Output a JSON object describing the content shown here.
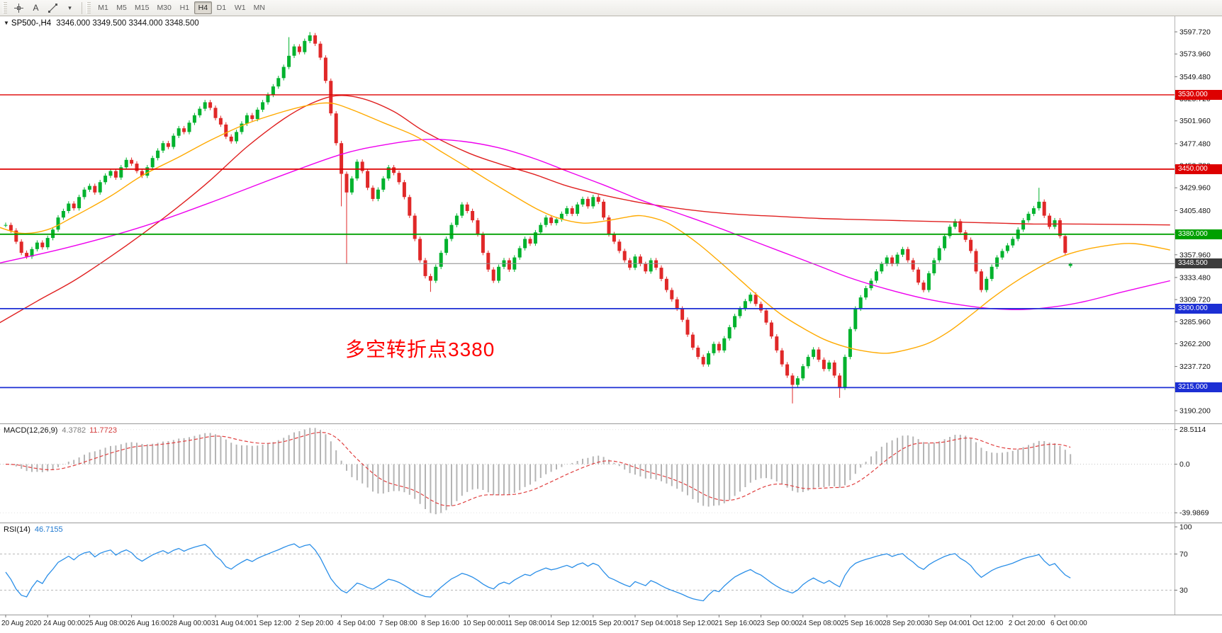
{
  "toolbar": {
    "text_tool_label": "A",
    "dropdown_caret": "▾",
    "timeframes": [
      "M1",
      "M5",
      "M15",
      "M30",
      "H1",
      "H4",
      "D1",
      "W1",
      "MN"
    ],
    "active_timeframe": "H4"
  },
  "header": {
    "collapse_icon": "▼",
    "chart_title": "SP500-,H4",
    "ohlc_text": "3346.000 3349.500 3344.000 3348.500"
  },
  "chart_data": {
    "type": "candlestick",
    "symbol": "SP500-",
    "timeframe": "H4",
    "ohlc_display": {
      "open": "3346.000",
      "high": "3349.500",
      "low": "3344.000",
      "close": "3348.500"
    },
    "ylim": [
      3190.2,
      3597.72
    ],
    "price_axis_labels": [
      "3597.720",
      "3573.960",
      "3549.480",
      "3525.720",
      "3501.960",
      "3477.480",
      "3453.720",
      "3429.960",
      "3405.480",
      "3381.720",
      "3357.960",
      "3333.480",
      "3309.720",
      "3285.960",
      "3262.200",
      "3237.720",
      "3213.960",
      "3190.200"
    ],
    "time_labels": [
      "20 Aug 2020",
      "24 Aug 00:00",
      "25 Aug 08:00",
      "26 Aug 16:00",
      "28 Aug 00:00",
      "31 Aug 04:00",
      "1 Sep 12:00",
      "2 Sep 20:00",
      "4 Sep 04:00",
      "7 Sep 08:00",
      "8 Sep 16:00",
      "10 Sep 00:00",
      "11 Sep 08:00",
      "14 Sep 12:00",
      "15 Sep 20:00",
      "17 Sep 04:00",
      "18 Sep 12:00",
      "21 Sep 16:00",
      "23 Sep 00:00",
      "24 Sep 08:00",
      "25 Sep 16:00",
      "28 Sep 20:00",
      "30 Sep 04:00",
      "1 Oct 12:00",
      "2 Oct 20:00",
      "6 Oct 00:00"
    ],
    "bars_per_time_label": 8,
    "first_bar_open": 3390,
    "closes": [
      3390,
      3384,
      3372,
      3360,
      3356,
      3364,
      3371,
      3366,
      3376,
      3385,
      3398,
      3405,
      3413,
      3408,
      3420,
      3428,
      3432,
      3425,
      3436,
      3443,
      3448,
      3441,
      3452,
      3460,
      3456,
      3448,
      3443,
      3452,
      3462,
      3470,
      3478,
      3474,
      3486,
      3494,
      3490,
      3500,
      3508,
      3515,
      3522,
      3516,
      3505,
      3498,
      3485,
      3480,
      3490,
      3499,
      3508,
      3504,
      3514,
      3522,
      3530,
      3539,
      3548,
      3560,
      3572,
      3582,
      3576,
      3588,
      3594,
      3585,
      3570,
      3545,
      3510,
      3478,
      3445,
      3425,
      3440,
      3458,
      3448,
      3430,
      3418,
      3428,
      3440,
      3452,
      3446,
      3436,
      3420,
      3400,
      3375,
      3352,
      3335,
      3330,
      3345,
      3360,
      3375,
      3390,
      3400,
      3412,
      3405,
      3395,
      3380,
      3360,
      3342,
      3330,
      3345,
      3352,
      3342,
      3355,
      3365,
      3375,
      3370,
      3382,
      3390,
      3398,
      3392,
      3396,
      3402,
      3408,
      3402,
      3412,
      3418,
      3410,
      3420,
      3415,
      3398,
      3380,
      3372,
      3362,
      3352,
      3344,
      3356,
      3348,
      3340,
      3352,
      3344,
      3332,
      3320,
      3310,
      3300,
      3288,
      3272,
      3258,
      3248,
      3240,
      3252,
      3262,
      3255,
      3268,
      3280,
      3292,
      3300,
      3308,
      3315,
      3305,
      3298,
      3285,
      3270,
      3255,
      3240,
      3228,
      3218,
      3225,
      3238,
      3248,
      3256,
      3245,
      3235,
      3242,
      3228,
      3215,
      3248,
      3278,
      3300,
      3312,
      3322,
      3330,
      3340,
      3348,
      3355,
      3348,
      3358,
      3364,
      3352,
      3342,
      3328,
      3320,
      3338,
      3352,
      3365,
      3378,
      3388,
      3394,
      3382,
      3374,
      3362,
      3340,
      3320,
      3332,
      3345,
      3355,
      3362,
      3368,
      3375,
      3385,
      3395,
      3402,
      3408,
      3415,
      3400,
      3388,
      3395,
      3378,
      3360,
      3348.5
    ],
    "bar_overrides": {
      "54": {
        "high": 3592
      },
      "58": {
        "high": 3597.5
      },
      "64": {
        "low": 3410
      },
      "65": {
        "low": 3348
      },
      "81": {
        "low": 3318
      },
      "150": {
        "low": 3198
      },
      "159": {
        "low": 3204
      },
      "197": {
        "high": 3430
      },
      "203": {
        "open": 3346,
        "high": 3349.5,
        "low": 3344
      }
    },
    "colors": {
      "up": "#00b22d",
      "down": "#e02828"
    },
    "horizontal_levels": [
      {
        "value": 3530,
        "label": "3530.000",
        "color": "#dd0000",
        "width": 1.4
      },
      {
        "value": 3450,
        "label": "3450.000",
        "color": "#dd0000",
        "width": 1.8
      },
      {
        "value": 3380,
        "label": "3380.000",
        "color": "#00a000",
        "width": 1.8
      },
      {
        "value": 3300,
        "label": "3300.000",
        "color": "#1c2fd4",
        "width": 1.8
      },
      {
        "value": 3215,
        "label": "3215.000",
        "color": "#1c2fd4",
        "width": 1.8
      }
    ],
    "current_price": {
      "value": 3348.5,
      "label": "3348.500",
      "badge_color": "#3c3c3c"
    },
    "moving_averages": [
      {
        "name": "slow-ma-line",
        "color": "#e02020",
        "points": [
          [
            -2,
            3282
          ],
          [
            6,
            3308
          ],
          [
            13,
            3330
          ],
          [
            20,
            3356
          ],
          [
            26,
            3380
          ],
          [
            33,
            3410
          ],
          [
            39,
            3438
          ],
          [
            46,
            3474
          ],
          [
            53,
            3504
          ],
          [
            58,
            3520
          ],
          [
            63,
            3529
          ],
          [
            68,
            3526
          ],
          [
            74,
            3512
          ],
          [
            80,
            3490
          ],
          [
            88,
            3468
          ],
          [
            94,
            3456
          ],
          [
            101,
            3444
          ],
          [
            107,
            3432
          ],
          [
            114,
            3422
          ],
          [
            121,
            3414
          ],
          [
            128,
            3408
          ],
          [
            134,
            3404
          ],
          [
            141,
            3401
          ],
          [
            148,
            3399
          ],
          [
            155,
            3397
          ],
          [
            161,
            3396
          ],
          [
            168,
            3395
          ],
          [
            175,
            3394
          ],
          [
            182,
            3393
          ],
          [
            189,
            3392
          ],
          [
            196,
            3391
          ],
          [
            204,
            3391
          ],
          [
            222,
            3390
          ]
        ]
      },
      {
        "name": "mid-ma-line",
        "color": "#ee00ee",
        "points": [
          [
            -2,
            3348
          ],
          [
            12,
            3366
          ],
          [
            26,
            3388
          ],
          [
            39,
            3414
          ],
          [
            53,
            3444
          ],
          [
            64,
            3466
          ],
          [
            72,
            3476
          ],
          [
            80,
            3482
          ],
          [
            87,
            3480
          ],
          [
            94,
            3473
          ],
          [
            101,
            3461
          ],
          [
            107,
            3448
          ],
          [
            114,
            3433
          ],
          [
            121,
            3417
          ],
          [
            128,
            3403
          ],
          [
            134,
            3391
          ],
          [
            141,
            3376
          ],
          [
            148,
            3361
          ],
          [
            155,
            3346
          ],
          [
            161,
            3333
          ],
          [
            168,
            3321
          ],
          [
            175,
            3311
          ],
          [
            182,
            3304
          ],
          [
            188,
            3300
          ],
          [
            194,
            3299
          ],
          [
            200,
            3302
          ],
          [
            206,
            3308
          ],
          [
            213,
            3318
          ],
          [
            222,
            3330
          ]
        ]
      },
      {
        "name": "fast-ma-line",
        "color": "#ffaa00",
        "points": [
          [
            -2,
            3389
          ],
          [
            3,
            3381
          ],
          [
            8,
            3385
          ],
          [
            13,
            3399
          ],
          [
            20,
            3421
          ],
          [
            26,
            3443
          ],
          [
            33,
            3463
          ],
          [
            39,
            3481
          ],
          [
            46,
            3499
          ],
          [
            53,
            3512
          ],
          [
            58,
            3519
          ],
          [
            62,
            3521
          ],
          [
            66,
            3514
          ],
          [
            72,
            3500
          ],
          [
            78,
            3486
          ],
          [
            83,
            3469
          ],
          [
            88,
            3452
          ],
          [
            92,
            3438
          ],
          [
            97,
            3421
          ],
          [
            101,
            3408
          ],
          [
            105,
            3398
          ],
          [
            110,
            3392
          ],
          [
            114,
            3394
          ],
          [
            118,
            3398
          ],
          [
            121,
            3400
          ],
          [
            125,
            3395
          ],
          [
            128,
            3386
          ],
          [
            132,
            3370
          ],
          [
            136,
            3351
          ],
          [
            140,
            3331
          ],
          [
            144,
            3311
          ],
          [
            148,
            3293
          ],
          [
            152,
            3279
          ],
          [
            156,
            3267
          ],
          [
            160,
            3259
          ],
          [
            164,
            3254
          ],
          [
            168,
            3252
          ],
          [
            172,
            3256
          ],
          [
            176,
            3263
          ],
          [
            180,
            3276
          ],
          [
            184,
            3293
          ],
          [
            188,
            3311
          ],
          [
            192,
            3327
          ],
          [
            196,
            3341
          ],
          [
            200,
            3353
          ],
          [
            204,
            3361
          ],
          [
            209,
            3367
          ],
          [
            215,
            3370
          ],
          [
            222,
            3363
          ]
        ]
      }
    ],
    "indicators": {
      "macd": {
        "title": "MACD(12,26,9)",
        "value": "4.3782",
        "signal": "11.7723",
        "axis_labels": [
          "28.5114",
          "0.0",
          "-39.9869"
        ],
        "ylim": [
          -48,
          33
        ],
        "params": {
          "fast": 12,
          "slow": 26,
          "signal": 9
        },
        "histogram_color": "#b4b4b4",
        "signal_color": "#e04040"
      },
      "rsi": {
        "title": "RSI(14)",
        "value": "46.7155",
        "axis_labels": [
          "100",
          "70",
          "30"
        ],
        "levels": [
          70,
          30
        ],
        "ylim": [
          3,
          104
        ],
        "line_color": "#2b8fe8"
      }
    },
    "annotation": {
      "text": "多空转折点3380",
      "color": "#ff0000"
    }
  }
}
